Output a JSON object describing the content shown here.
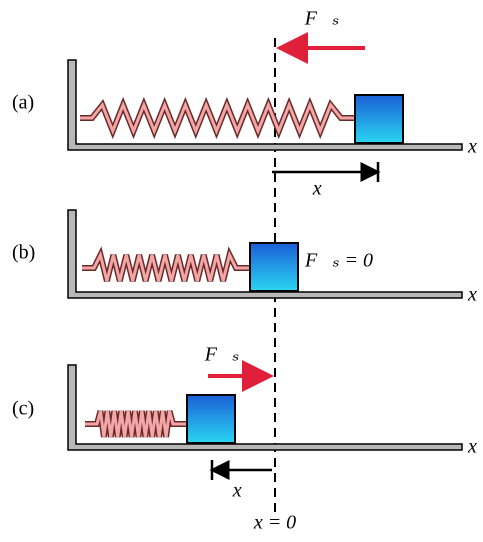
{
  "panels": [
    {
      "label": "(a)",
      "force_label": "F⃗ₛ",
      "axis_label": "x",
      "displacement_label": "x⃗"
    },
    {
      "label": "(b)",
      "force_label": "F⃗ₛ = 0",
      "axis_label": "x"
    },
    {
      "label": "(c)",
      "force_label": "F⃗ₛ",
      "axis_label": "x",
      "displacement_label": "x⃗"
    }
  ],
  "origin_label": "x = 0"
}
